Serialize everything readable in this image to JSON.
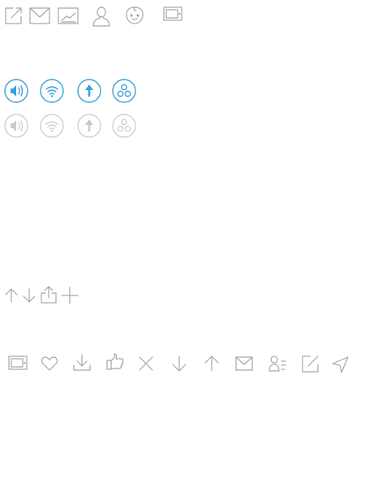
{
  "colors": {
    "icon_gray": "#a6a6a6",
    "icon_light_gray": "#c9c9c9",
    "icon_active_blue": "#3aa0d8",
    "background": "#ffffff"
  },
  "rows": {
    "top": [
      "compose-icon",
      "mail-icon",
      "chart-icon",
      "user-icon",
      "baby-icon",
      "tablet-icon"
    ],
    "circle_active": [
      "volume-icon",
      "wifi-icon",
      "upload-arrow-icon",
      "group-icon"
    ],
    "circle_inactive": [
      "volume-icon",
      "wifi-icon",
      "upload-arrow-icon",
      "group-icon"
    ],
    "small_actions": [
      "arrow-up-icon",
      "arrow-down-icon",
      "share-icon",
      "plus-icon"
    ],
    "toolbar": [
      "tablet-icon",
      "heart-icon",
      "download-icon",
      "thumbs-up-icon",
      "close-icon",
      "arrow-down-icon",
      "arrow-up-icon",
      "mail-icon",
      "contacts-icon",
      "compose-icon",
      "send-icon"
    ]
  }
}
